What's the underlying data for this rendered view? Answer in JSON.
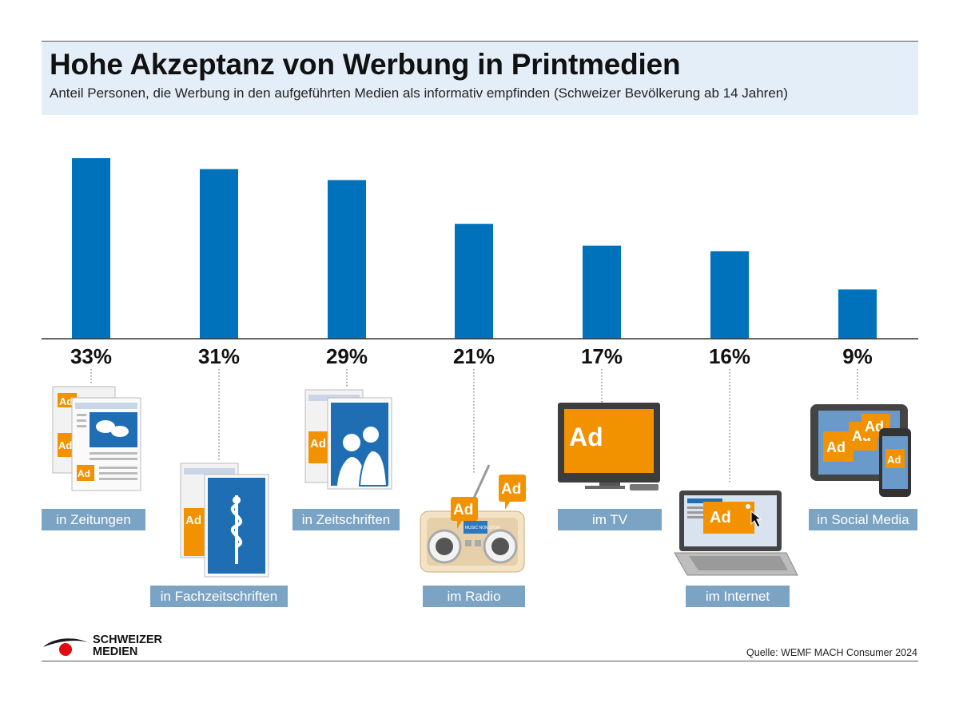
{
  "header": {
    "title": "Hohe Akzeptanz von Werbung in Printmedien",
    "subtitle": "Anteil Personen, die Werbung in den aufgeführten Medien als informativ empfinden (Schweizer Bevölkerung ab 14 Jahren)"
  },
  "chart_data": {
    "type": "bar",
    "categories": [
      "in Zeitungen",
      "in Fachzeitschriften",
      "in Zeitschriften",
      "im Radio",
      "im TV",
      "im Internet",
      "in Social Media"
    ],
    "values": [
      33,
      31,
      29,
      21,
      17,
      16,
      9
    ],
    "value_labels": [
      "33%",
      "31%",
      "29%",
      "21%",
      "17%",
      "16%",
      "9%"
    ],
    "ylim": [
      0,
      33
    ],
    "grid": false,
    "bar_color": "#0072bc"
  },
  "icons": [
    "newspaper-icon",
    "medical-journal-icon",
    "magazine-icon",
    "radio-icon",
    "tv-icon",
    "laptop-icon",
    "tablet-phone-icon"
  ],
  "icon_text": {
    "ad": "Ad",
    "radio": "MUSIC NON STOP"
  },
  "colors": {
    "accent_orange": "#f39200",
    "label_bg": "#7ba3c4",
    "header_bg": "#e4eef8",
    "logo_red": "#e30613"
  },
  "footer": {
    "logo_line1": "SCHWEIZER",
    "logo_line2": "MEDIEN",
    "source": "Quelle: WEMF MACH Consumer 2024"
  }
}
